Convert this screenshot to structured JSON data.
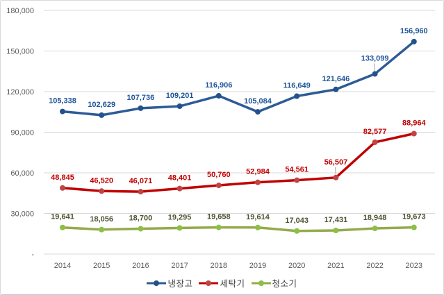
{
  "chart_data": {
    "type": "line",
    "title": "",
    "xlabel": "",
    "ylabel": "",
    "x_categories": [
      "2014",
      "2015",
      "2016",
      "2017",
      "2018",
      "2019",
      "2020",
      "2021",
      "2022",
      "2023"
    ],
    "series": [
      {
        "name": "냉장고",
        "color": "#2d5b96",
        "marker_color": "#23528a",
        "label_color": "#1f5499",
        "values": [
          105338,
          102629,
          107736,
          109201,
          116906,
          105084,
          116649,
          121646,
          133099,
          156960
        ]
      },
      {
        "name": "세탁기",
        "color": "#c00000",
        "marker_color": "#bf4545",
        "label_color": "#c00000",
        "values": [
          48845,
          46520,
          46071,
          48401,
          50760,
          52984,
          54561,
          56507,
          82577,
          88964
        ]
      },
      {
        "name": "청소기",
        "color": "#94aa4b",
        "marker_color": "#8bc043",
        "label_color": "#4c5430",
        "values": [
          19641,
          18056,
          18700,
          19295,
          19658,
          19614,
          17043,
          17431,
          18948,
          19673
        ]
      }
    ],
    "y_axis": {
      "min": 0,
      "max": 180000,
      "step": 30000,
      "tick_labels": [
        "180,000",
        "150,000",
        "120,000",
        "90,000",
        "60,000",
        "30,000",
        "-"
      ]
    },
    "callout_labels": [
      {
        "series_index": 0,
        "point_index": 8
      },
      {
        "series_index": 1,
        "point_index": 7
      }
    ],
    "grid": true,
    "legend_position": "bottom",
    "colors": {
      "gridline": "#d9d9d9",
      "axis_text": "#595959",
      "legend_text": "#404040",
      "leader_line": "#a6a6a6",
      "background": "#ffffff",
      "frame_border": "#d5dade"
    }
  }
}
